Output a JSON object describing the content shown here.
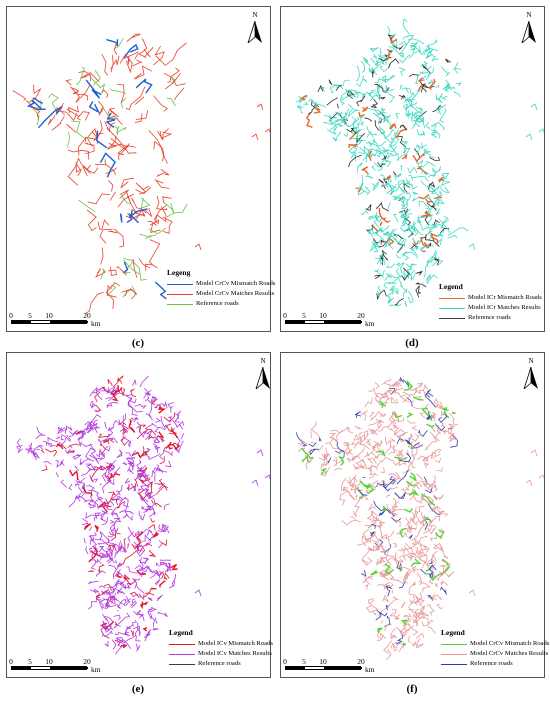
{
  "panels": [
    {
      "id": "c",
      "caption": "(c)",
      "north": "N",
      "legend_title": "Legeng",
      "legend": [
        {
          "label": "Model CrCv Mismatch Roads",
          "color": "#1f5fd6"
        },
        {
          "label": "Model CrCv Matches Results",
          "color": "#e8432e"
        },
        {
          "label": "Reference roads",
          "color": "#6cc04a"
        }
      ],
      "scale_ticks": [
        "0",
        "5",
        "10",
        "20"
      ],
      "scale_unit": "km",
      "colors": {
        "primary": "#e8432e",
        "secondary": "#6cc04a",
        "accent": "#1f5fd6"
      }
    },
    {
      "id": "d",
      "caption": "(d)",
      "north": "N",
      "legend_title": "Legend",
      "legend": [
        {
          "label": "Model ICr Mismatch Roads",
          "color": "#e8652b"
        },
        {
          "label": "Model ICr Matches Results",
          "color": "#3fd9c2"
        },
        {
          "label": "Reference roads",
          "color": "#3b3b3b"
        }
      ],
      "scale_ticks": [
        "0",
        "5",
        "10",
        "20"
      ],
      "scale_unit": "km",
      "colors": {
        "primary": "#3fd9c2",
        "secondary": "#2a2a2a",
        "accent": "#e8652b"
      }
    },
    {
      "id": "e",
      "caption": "(e)",
      "north": "N",
      "legend_title": "Legend",
      "legend": [
        {
          "label": "Model ICv Mismatch Roads",
          "color": "#e0162b"
        },
        {
          "label": "Model ICv Matches Results",
          "color": "#b43be0"
        },
        {
          "label": "Reference roads",
          "color": "#3b3b3b"
        }
      ],
      "scale_ticks": [
        "0",
        "5",
        "10",
        "20"
      ],
      "scale_unit": "km",
      "colors": {
        "primary": "#b43be0",
        "secondary": "#e0162b",
        "accent": "#e0162b"
      }
    },
    {
      "id": "f",
      "caption": "(f)",
      "north": "N",
      "legend_title": "Legend",
      "legend": [
        {
          "label": "Model CrCv Mismatch Roads",
          "color": "#4fd62f"
        },
        {
          "label": "Model CrCv Matches Results",
          "color": "#e79a9a"
        },
        {
          "label": "Reference roads",
          "color": "#2b3fb0"
        }
      ],
      "scale_ticks": [
        "0",
        "5",
        "10",
        "20"
      ],
      "scale_unit": "km",
      "colors": {
        "primary": "#e79a9a",
        "secondary": "#2b3fb0",
        "accent": "#4fd62f"
      }
    }
  ]
}
